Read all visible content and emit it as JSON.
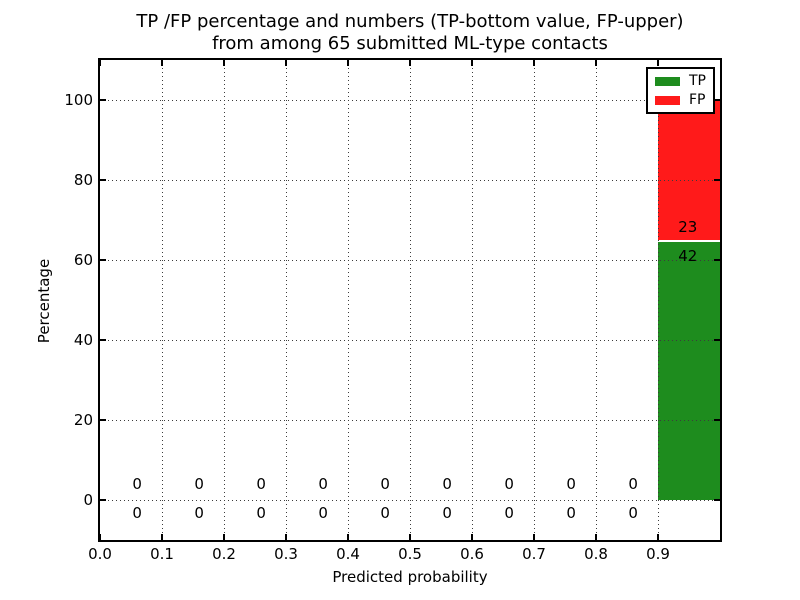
{
  "figure": {
    "title_line1": "TP /FP percentage and numbers (TP-bottom value, FP-upper)",
    "title_line2": "from among 65 submitted ML-type contacts",
    "background": "#ffffff"
  },
  "chart_data": {
    "type": "bar",
    "stacked": true,
    "title": "TP /FP percentage and numbers (TP-bottom value, FP-upper) from among 65 submitted ML-type contacts",
    "xlabel": "Predicted probability",
    "ylabel": "Percentage",
    "xlim": [
      0.0,
      1.0
    ],
    "ylim": [
      -10,
      110
    ],
    "grid": true,
    "grid_style": "dotted",
    "legend_position": "upper right",
    "total_submitted": 65,
    "bin_edges": [
      0.0,
      0.1,
      0.2,
      0.3,
      0.4,
      0.5,
      0.6,
      0.7,
      0.8,
      0.9,
      1.0
    ],
    "xticks": [
      "0.0",
      "0.1",
      "0.2",
      "0.3",
      "0.4",
      "0.5",
      "0.6",
      "0.7",
      "0.8",
      "0.9"
    ],
    "xtick_values": [
      0.0,
      0.1,
      0.2,
      0.3,
      0.4,
      0.5,
      0.6,
      0.7,
      0.8,
      0.9
    ],
    "yticks": [
      0,
      20,
      40,
      60,
      80,
      100
    ],
    "series": [
      {
        "name": "TP",
        "color": "#1e8c1e",
        "counts": [
          0,
          0,
          0,
          0,
          0,
          0,
          0,
          0,
          0,
          42
        ],
        "percent": [
          0,
          0,
          0,
          0,
          0,
          0,
          0,
          0,
          0,
          64.6
        ]
      },
      {
        "name": "FP",
        "color": "#ff1a1a",
        "counts": [
          0,
          0,
          0,
          0,
          0,
          0,
          0,
          0,
          0,
          23
        ],
        "percent": [
          0,
          0,
          0,
          0,
          0,
          0,
          0,
          0,
          0,
          35.4
        ]
      }
    ],
    "annotations": [
      {
        "x": 0.06,
        "y": 4.0,
        "text": "0",
        "series": "FP"
      },
      {
        "x": 0.16,
        "y": 4.0,
        "text": "0",
        "series": "FP"
      },
      {
        "x": 0.26,
        "y": 4.0,
        "text": "0",
        "series": "FP"
      },
      {
        "x": 0.36,
        "y": 4.0,
        "text": "0",
        "series": "FP"
      },
      {
        "x": 0.46,
        "y": 4.0,
        "text": "0",
        "series": "FP"
      },
      {
        "x": 0.56,
        "y": 4.0,
        "text": "0",
        "series": "FP"
      },
      {
        "x": 0.66,
        "y": 4.0,
        "text": "0",
        "series": "FP"
      },
      {
        "x": 0.76,
        "y": 4.0,
        "text": "0",
        "series": "FP"
      },
      {
        "x": 0.86,
        "y": 4.0,
        "text": "0",
        "series": "FP"
      },
      {
        "x": 0.06,
        "y": -3.3,
        "text": "0",
        "series": "TP"
      },
      {
        "x": 0.16,
        "y": -3.3,
        "text": "0",
        "series": "TP"
      },
      {
        "x": 0.26,
        "y": -3.3,
        "text": "0",
        "series": "TP"
      },
      {
        "x": 0.36,
        "y": -3.3,
        "text": "0",
        "series": "TP"
      },
      {
        "x": 0.46,
        "y": -3.3,
        "text": "0",
        "series": "TP"
      },
      {
        "x": 0.56,
        "y": -3.3,
        "text": "0",
        "series": "TP"
      },
      {
        "x": 0.66,
        "y": -3.3,
        "text": "0",
        "series": "TP"
      },
      {
        "x": 0.76,
        "y": -3.3,
        "text": "0",
        "series": "TP"
      },
      {
        "x": 0.86,
        "y": -3.3,
        "text": "0",
        "series": "TP"
      },
      {
        "x": 0.948,
        "y": 68.3,
        "text": "23",
        "series": "FP"
      },
      {
        "x": 0.948,
        "y": 61.0,
        "text": "42",
        "series": "TP"
      }
    ]
  }
}
